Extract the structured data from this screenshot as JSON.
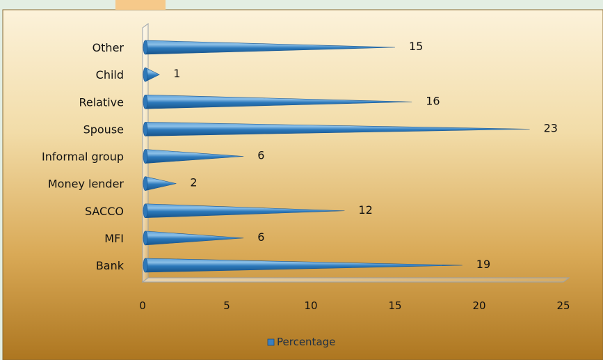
{
  "chart_data": {
    "type": "bar",
    "orientation": "horizontal",
    "style": "3d-cone",
    "categories": [
      "Bank",
      "MFI",
      "SACCO",
      "Money lender",
      "Informal group",
      "Spouse",
      "Relative",
      "Child",
      "Other"
    ],
    "series": [
      {
        "name": "Percentage",
        "values": [
          19,
          6,
          12,
          2,
          6,
          23,
          16,
          1,
          15
        ]
      }
    ],
    "data_labels": [
      "19",
      "6",
      "12",
      "2",
      "6",
      "23",
      "16",
      "1",
      "15"
    ],
    "xlim": [
      0,
      25
    ],
    "x_ticks": [
      0,
      5,
      10,
      15,
      20,
      25
    ],
    "x_tick_labels": [
      "0",
      "5",
      "10",
      "15",
      "20",
      "25"
    ],
    "title": "",
    "xlabel": "",
    "ylabel": "",
    "grid": false,
    "legend": {
      "position": "bottom",
      "entries": [
        "Percentage"
      ]
    },
    "colors": {
      "bar": "#1f6fb0",
      "bar_highlight": "#7fb6e0",
      "background_top": "#fbf0d6",
      "background_bottom": "#b07a22",
      "outer": "#e3eee3"
    }
  }
}
